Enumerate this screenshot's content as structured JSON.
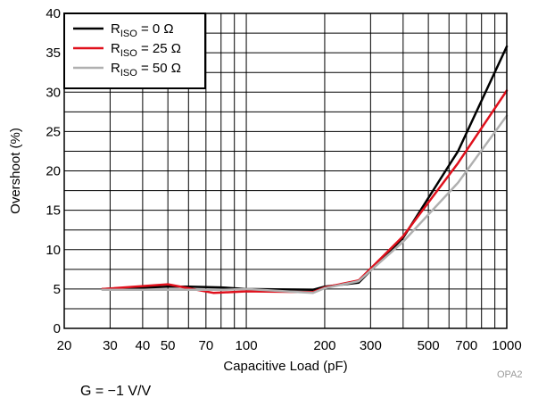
{
  "chart_data": {
    "type": "line",
    "xlabel": "Capacitive Load (pF)",
    "ylabel": "Overshoot (%)",
    "xscale": "log",
    "xlim": [
      20,
      1000
    ],
    "ylim": [
      0,
      40
    ],
    "x_ticks": [
      20,
      30,
      40,
      50,
      70,
      100,
      200,
      300,
      500,
      700,
      1000
    ],
    "y_ticks": [
      0,
      5,
      10,
      15,
      20,
      25,
      30,
      35,
      40
    ],
    "y_minor_step": 2.5,
    "x_minor_ticks": [
      60,
      80,
      90,
      400,
      600,
      800,
      900
    ],
    "grid": true,
    "legend_position": "top-left",
    "series": [
      {
        "name": "R",
        "subscript": "ISO",
        "value": " = 0 Ω",
        "color": "#000000",
        "x": [
          28,
          50,
          60,
          80,
          100,
          180,
          200,
          270,
          400,
          650,
          1000
        ],
        "y": [
          5.0,
          5.3,
          5.3,
          5.2,
          5.0,
          4.9,
          5.3,
          5.8,
          11.5,
          22.5,
          35.8
        ]
      },
      {
        "name": "R",
        "subscript": "ISO",
        "value": " = 25 Ω",
        "color": "#e0101c",
        "x": [
          28,
          50,
          60,
          75,
          100,
          180,
          200,
          270,
          400,
          650,
          1000
        ],
        "y": [
          5.0,
          5.6,
          5.1,
          4.5,
          4.7,
          4.6,
          5.2,
          6.1,
          11.7,
          21.0,
          30.2
        ]
      },
      {
        "name": "R",
        "subscript": "ISO",
        "value": " = 50 Ω",
        "color": "#b0b0b0",
        "x": [
          28,
          50,
          60,
          80,
          100,
          180,
          200,
          270,
          400,
          650,
          1000
        ],
        "y": [
          4.9,
          4.9,
          4.9,
          4.9,
          5.0,
          4.5,
          5.1,
          6.0,
          11.0,
          18.5,
          27.0
        ]
      }
    ]
  },
  "watermark": "OPA2",
  "caption": "G = −1 V/V"
}
